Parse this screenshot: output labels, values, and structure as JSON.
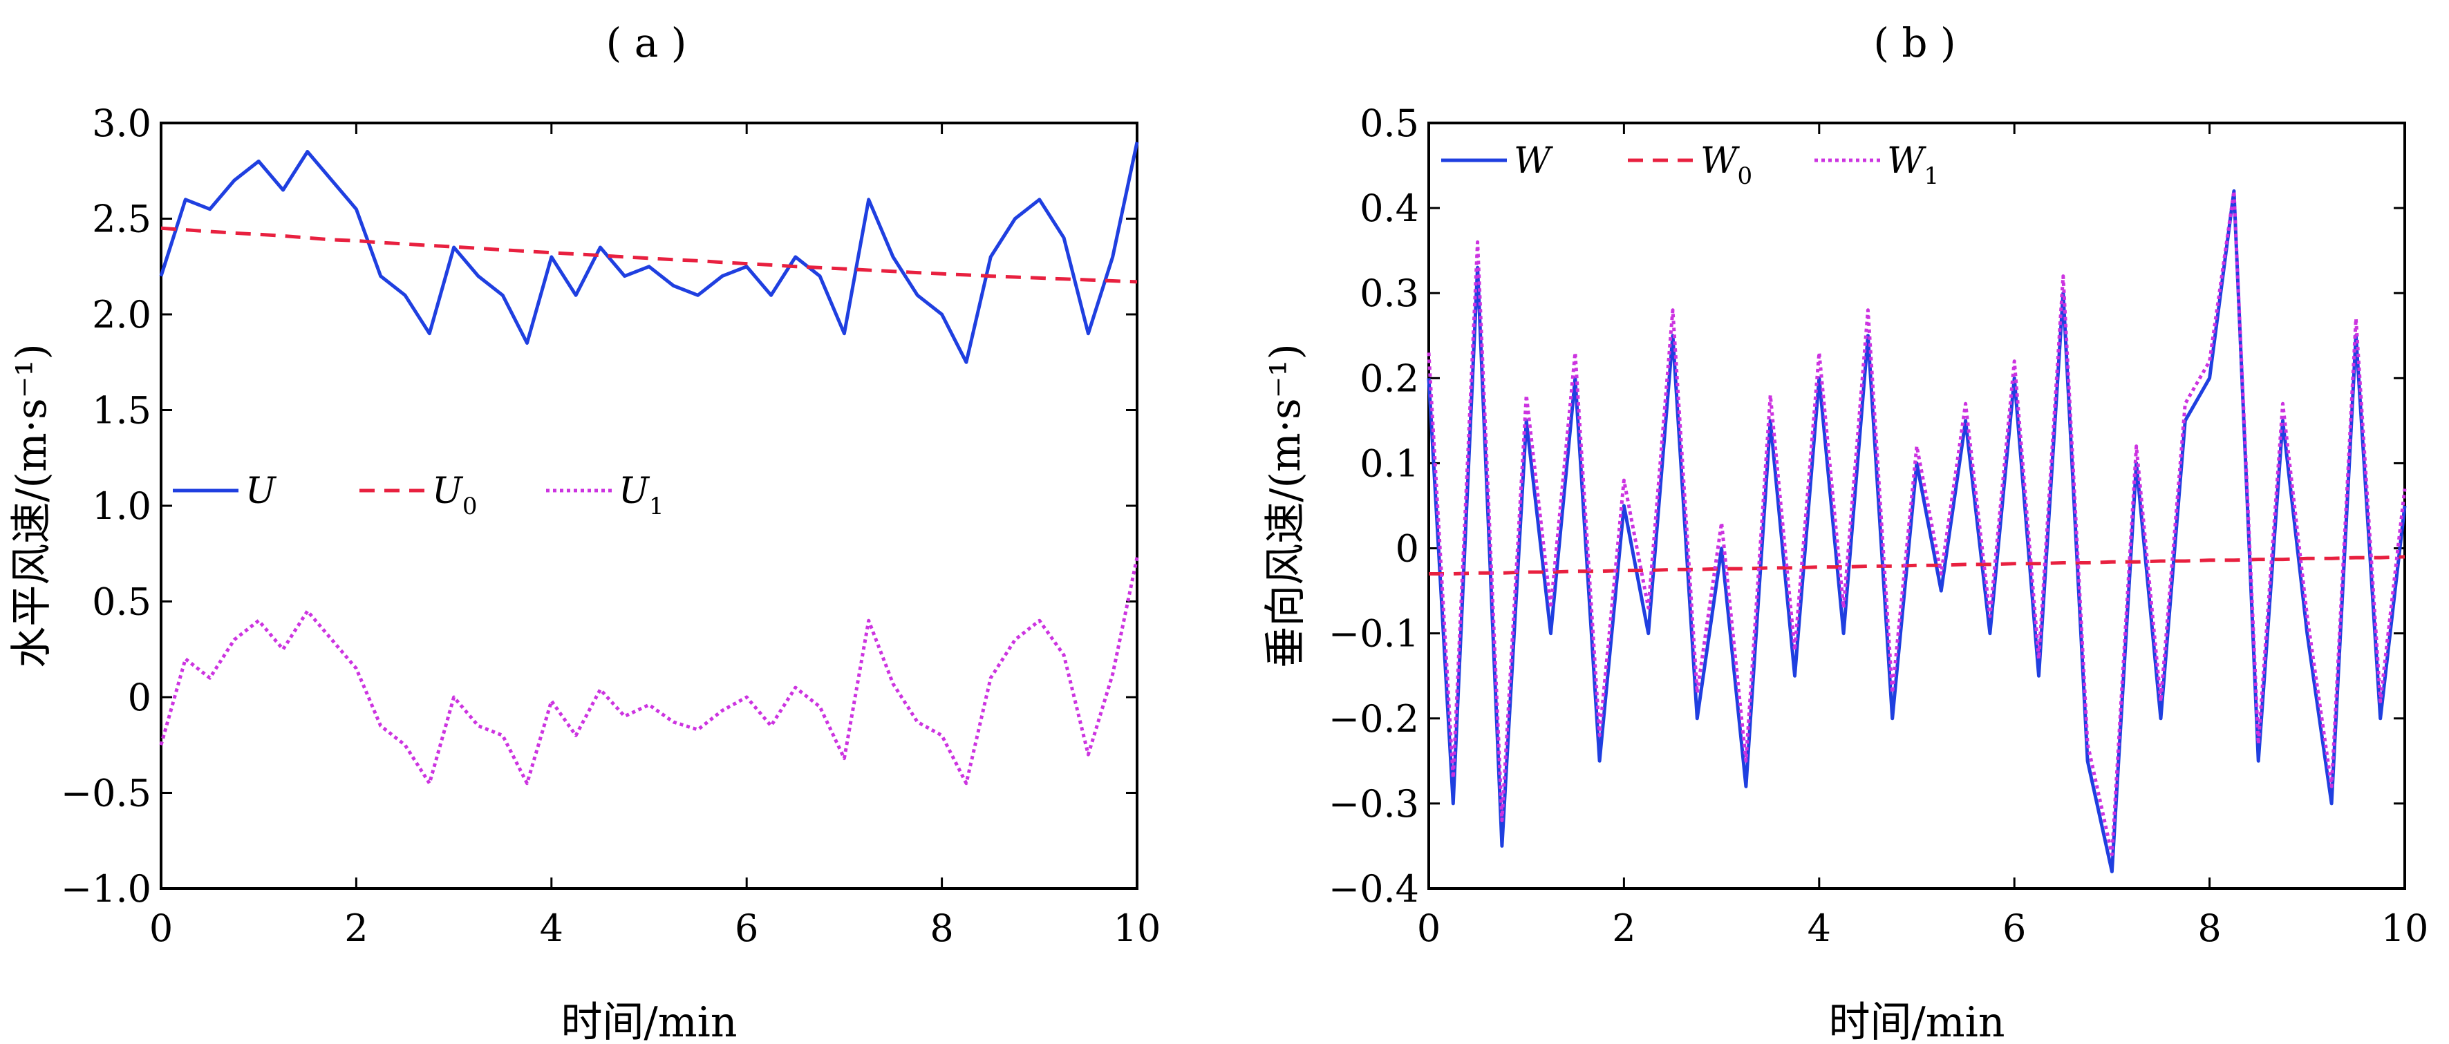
{
  "figure": {
    "panel_a_label": "( a )",
    "panel_b_label": "( b )"
  },
  "colors": {
    "measured": "#1f3fe0",
    "mean": "#e8203f",
    "fluctuation": "#cc33e0",
    "axis": "#000000"
  },
  "chart_data": [
    {
      "type": "line",
      "panel": "a",
      "title": "( a )",
      "xlabel": "时间/min",
      "ylabel": "水平风速/(m·s⁻¹)",
      "xlim": [
        0,
        10
      ],
      "ylim": [
        -1.0,
        3.0
      ],
      "xticks": [
        0,
        2,
        4,
        6,
        8,
        10
      ],
      "xtick_labels": [
        "0",
        "2",
        "4",
        "6",
        "8",
        "10"
      ],
      "yticks": [
        -1.0,
        -0.5,
        0,
        0.5,
        1.0,
        1.5,
        2.0,
        2.5,
        3.0
      ],
      "ytick_labels": [
        "−1.0",
        "−0.5",
        "0",
        "0.5",
        "1.0",
        "1.5",
        "2.0",
        "2.5",
        "3.0"
      ],
      "grid": false,
      "legend_placement": "middle-left",
      "legend": [
        {
          "label": "U",
          "sub": "",
          "style": "solid"
        },
        {
          "label": "U",
          "sub": "0",
          "style": "dashed"
        },
        {
          "label": "U",
          "sub": "1",
          "style": "dotted"
        }
      ],
      "x": [
        0,
        0.25,
        0.5,
        0.75,
        1,
        1.25,
        1.5,
        1.75,
        2,
        2.25,
        2.5,
        2.75,
        3,
        3.25,
        3.5,
        3.75,
        4,
        4.25,
        4.5,
        4.75,
        5,
        5.25,
        5.5,
        5.75,
        6,
        6.25,
        6.5,
        6.75,
        7,
        7.25,
        7.5,
        7.75,
        8,
        8.25,
        8.5,
        8.75,
        9,
        9.25,
        9.5,
        9.75,
        10
      ],
      "series": [
        {
          "name": "U",
          "style": "solid",
          "values": [
            2.2,
            2.6,
            2.55,
            2.7,
            2.8,
            2.65,
            2.85,
            2.7,
            2.55,
            2.2,
            2.1,
            1.9,
            2.35,
            2.2,
            2.1,
            1.85,
            2.3,
            2.1,
            2.35,
            2.2,
            2.25,
            2.15,
            2.1,
            2.2,
            2.25,
            2.1,
            2.3,
            2.2,
            1.9,
            2.6,
            2.3,
            2.1,
            2.0,
            1.75,
            2.3,
            2.5,
            2.6,
            2.4,
            1.9,
            2.3,
            2.9
          ]
        },
        {
          "name": "U0",
          "style": "dashed",
          "values": [
            2.45,
            2.442,
            2.433,
            2.425,
            2.418,
            2.41,
            2.4,
            2.39,
            2.385,
            2.375,
            2.368,
            2.36,
            2.353,
            2.345,
            2.337,
            2.33,
            2.322,
            2.315,
            2.308,
            2.3,
            2.293,
            2.286,
            2.28,
            2.272,
            2.265,
            2.258,
            2.25,
            2.244,
            2.238,
            2.231,
            2.225,
            2.218,
            2.212,
            2.206,
            2.2,
            2.195,
            2.19,
            2.185,
            2.18,
            2.175,
            2.17
          ]
        },
        {
          "name": "U1",
          "style": "dotted",
          "values": [
            -0.25,
            0.2,
            0.1,
            0.3,
            0.4,
            0.25,
            0.45,
            0.3,
            0.15,
            -0.15,
            -0.25,
            -0.45,
            0.0,
            -0.15,
            -0.2,
            -0.45,
            -0.02,
            -0.2,
            0.04,
            -0.1,
            -0.04,
            -0.13,
            -0.17,
            -0.07,
            0.0,
            -0.15,
            0.05,
            -0.05,
            -0.32,
            0.4,
            0.07,
            -0.13,
            -0.2,
            -0.45,
            0.1,
            0.3,
            0.4,
            0.22,
            -0.3,
            0.12,
            0.73
          ]
        }
      ]
    },
    {
      "type": "line",
      "panel": "b",
      "title": "( b )",
      "xlabel": "时间/min",
      "ylabel": "垂向风速/(m·s⁻¹)",
      "xlim": [
        0,
        10
      ],
      "ylim": [
        -0.4,
        0.5
      ],
      "xticks": [
        0,
        2,
        4,
        6,
        8,
        10
      ],
      "xtick_labels": [
        "0",
        "2",
        "4",
        "6",
        "8",
        "10"
      ],
      "yticks": [
        -0.4,
        -0.3,
        -0.2,
        -0.1,
        0,
        0.1,
        0.2,
        0.3,
        0.4,
        0.5
      ],
      "ytick_labels": [
        "−0.4",
        "−0.3",
        "−0.2",
        "−0.1",
        "0",
        "0.1",
        "0.2",
        "0.3",
        "0.4",
        "0.5"
      ],
      "grid": false,
      "legend_placement": "top-left",
      "legend": [
        {
          "label": "W",
          "sub": "",
          "style": "solid"
        },
        {
          "label": "W",
          "sub": "0",
          "style": "dashed"
        },
        {
          "label": "W",
          "sub": "1",
          "style": "dotted"
        }
      ],
      "x": [
        0,
        0.25,
        0.5,
        0.75,
        1,
        1.25,
        1.5,
        1.75,
        2,
        2.25,
        2.5,
        2.75,
        3,
        3.25,
        3.5,
        3.75,
        4,
        4.25,
        4.5,
        4.75,
        5,
        5.25,
        5.5,
        5.75,
        6,
        6.25,
        6.5,
        6.75,
        7,
        7.25,
        7.5,
        7.75,
        8,
        8.25,
        8.5,
        8.75,
        9,
        9.25,
        9.5,
        9.75,
        10
      ],
      "series": [
        {
          "name": "W",
          "style": "solid",
          "values": [
            0.2,
            -0.3,
            0.33,
            -0.35,
            0.15,
            -0.1,
            0.2,
            -0.25,
            0.05,
            -0.1,
            0.25,
            -0.2,
            0.0,
            -0.28,
            0.15,
            -0.15,
            0.2,
            -0.1,
            0.25,
            -0.2,
            0.1,
            -0.05,
            0.15,
            -0.1,
            0.2,
            -0.15,
            0.3,
            -0.25,
            -0.38,
            0.1,
            -0.2,
            0.15,
            0.2,
            0.42,
            -0.25,
            0.15,
            -0.1,
            -0.3,
            0.25,
            -0.2,
            0.05
          ]
        },
        {
          "name": "W0",
          "style": "dashed",
          "values": [
            -0.03,
            -0.03,
            -0.029,
            -0.029,
            -0.028,
            -0.028,
            -0.027,
            -0.027,
            -0.026,
            -0.026,
            -0.025,
            -0.025,
            -0.024,
            -0.024,
            -0.023,
            -0.023,
            -0.022,
            -0.022,
            -0.021,
            -0.021,
            -0.02,
            -0.02,
            -0.019,
            -0.019,
            -0.018,
            -0.018,
            -0.017,
            -0.017,
            -0.016,
            -0.016,
            -0.015,
            -0.015,
            -0.014,
            -0.014,
            -0.013,
            -0.013,
            -0.012,
            -0.012,
            -0.011,
            -0.011,
            -0.01
          ]
        },
        {
          "name": "W1",
          "style": "dotted",
          "values": [
            0.23,
            -0.27,
            0.36,
            -0.32,
            0.18,
            -0.07,
            0.23,
            -0.22,
            0.08,
            -0.07,
            0.28,
            -0.17,
            0.03,
            -0.25,
            0.18,
            -0.12,
            0.23,
            -0.07,
            0.28,
            -0.17,
            0.12,
            -0.03,
            0.17,
            -0.08,
            0.22,
            -0.13,
            0.32,
            -0.23,
            -0.36,
            0.12,
            -0.18,
            0.17,
            0.22,
            0.42,
            -0.23,
            0.17,
            -0.08,
            -0.28,
            0.27,
            -0.18,
            0.07
          ]
        }
      ]
    }
  ]
}
